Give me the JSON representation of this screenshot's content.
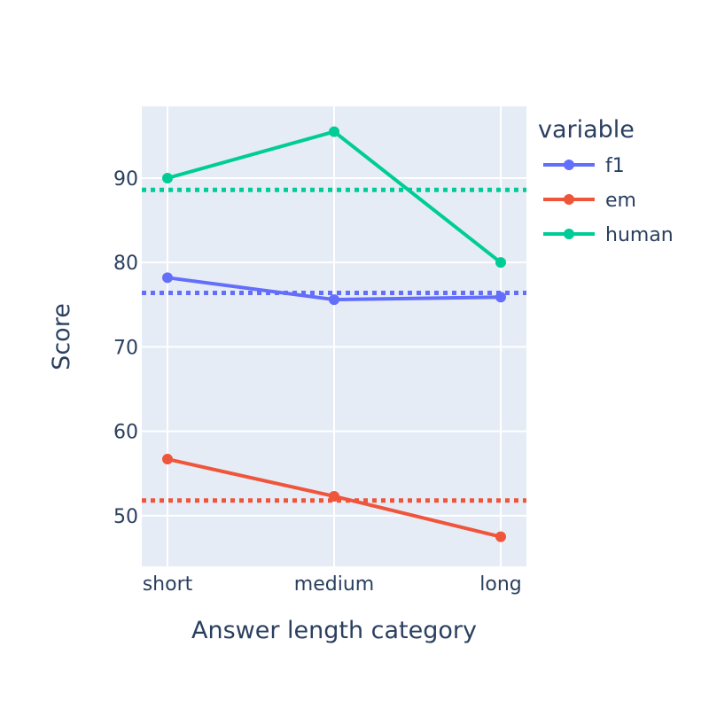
{
  "chart_data": {
    "type": "line",
    "categories": [
      "short",
      "medium",
      "long"
    ],
    "xlabel": "Answer length category",
    "ylabel": "Score",
    "ylim": [
      44,
      98.5
    ],
    "yticks": [
      50,
      60,
      70,
      80,
      90
    ],
    "grid": true,
    "legend": {
      "title": "variable",
      "placement": "right"
    },
    "series": [
      {
        "name": "f1",
        "values": [
          78.2,
          75.6,
          75.9
        ],
        "color": "#636efa",
        "mean": 76.4
      },
      {
        "name": "em",
        "values": [
          56.7,
          52.3,
          47.5
        ],
        "color": "#ef553b",
        "mean": 51.8
      },
      {
        "name": "human",
        "values": [
          90.0,
          95.5,
          80.0
        ],
        "color": "#00cc96",
        "mean": 88.6
      }
    ],
    "reference_lines": [
      {
        "series": "f1",
        "y": 76.4,
        "style": "dotted"
      },
      {
        "series": "em",
        "y": 51.8,
        "style": "dotted"
      },
      {
        "series": "human",
        "y": 88.6,
        "style": "dotted"
      }
    ]
  }
}
